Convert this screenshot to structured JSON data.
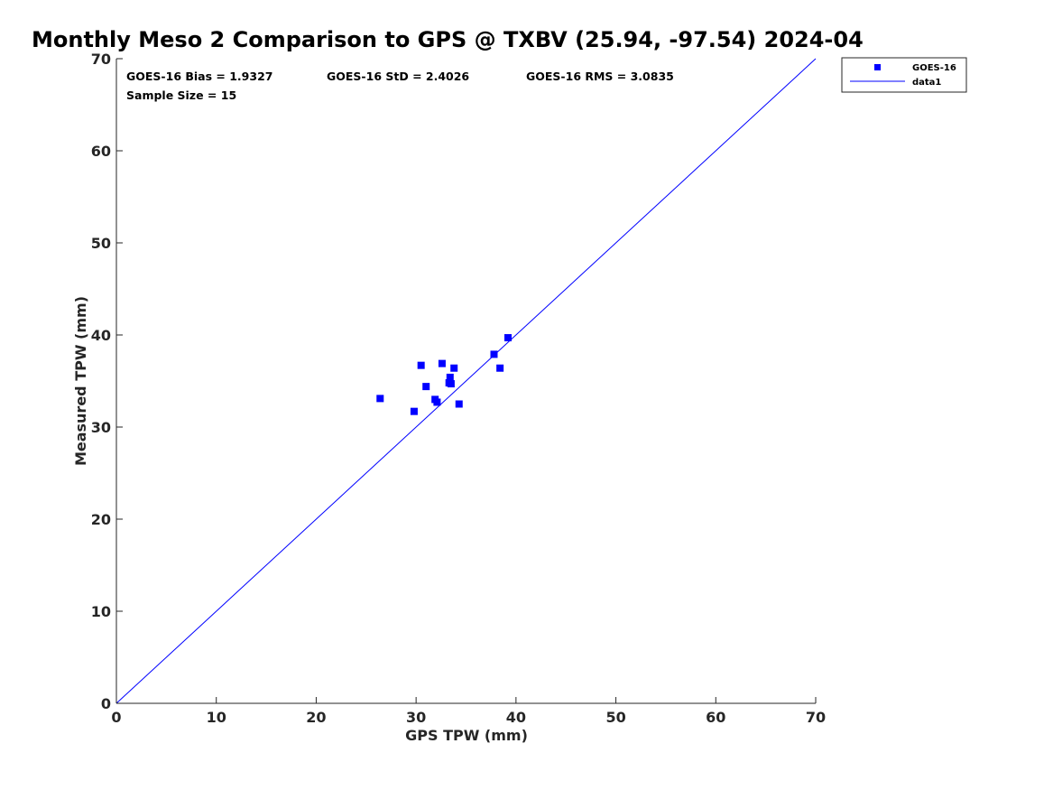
{
  "chart_data": {
    "type": "scatter",
    "title": "Monthly Meso 2 Comparison to GPS @ TXBV (25.94, -97.54) 2024-04",
    "xlabel": "GPS TPW (mm)",
    "ylabel": "Measured TPW (mm)",
    "xlim": [
      0,
      70
    ],
    "ylim": [
      0,
      70
    ],
    "xticks": [
      "0",
      "10",
      "20",
      "30",
      "40",
      "50",
      "60",
      "70"
    ],
    "yticks": [
      "0",
      "10",
      "20",
      "30",
      "40",
      "50",
      "60",
      "70"
    ],
    "grid": false,
    "legend_position": "outside-top-right",
    "stats": {
      "bias": "GOES-16 Bias = 1.9327",
      "std": "GOES-16 StD = 2.4026",
      "rms": "GOES-16 RMS = 3.0835",
      "sample": "Sample Size = 15"
    },
    "series": [
      {
        "name": "GOES-16",
        "kind": "scatter",
        "marker": "square",
        "color": "#0000ff",
        "points": [
          [
            26.4,
            33.1
          ],
          [
            29.8,
            31.7
          ],
          [
            30.5,
            36.7
          ],
          [
            31.0,
            34.4
          ],
          [
            31.9,
            33.0
          ],
          [
            32.1,
            32.7
          ],
          [
            32.6,
            36.9
          ],
          [
            33.3,
            34.8
          ],
          [
            33.4,
            35.4
          ],
          [
            33.5,
            34.7
          ],
          [
            33.8,
            36.4
          ],
          [
            34.3,
            32.5
          ],
          [
            37.8,
            37.9
          ],
          [
            38.4,
            36.4
          ],
          [
            39.2,
            39.7
          ]
        ]
      },
      {
        "name": "data1",
        "kind": "line",
        "color": "#0000ff",
        "points": [
          [
            0,
            0
          ],
          [
            70,
            70
          ]
        ]
      }
    ]
  }
}
